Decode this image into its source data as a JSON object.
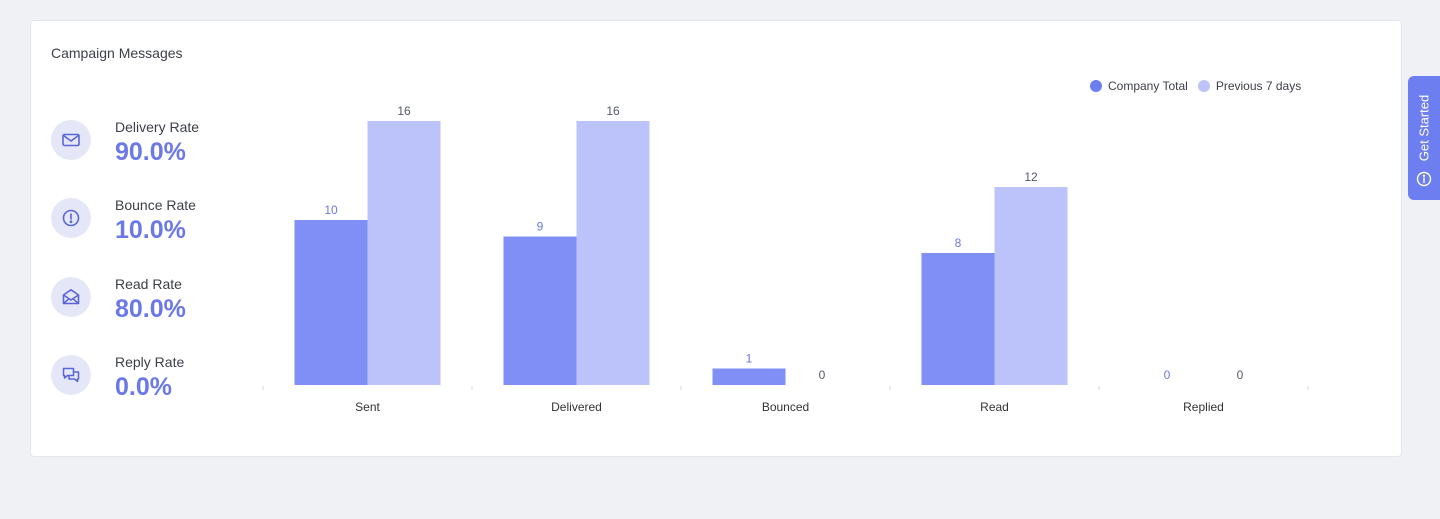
{
  "card": {
    "title": "Campaign Messages"
  },
  "metrics": [
    {
      "label": "Delivery Rate",
      "value": "90.0%",
      "icon": "envelope-icon"
    },
    {
      "label": "Bounce Rate",
      "value": "10.0%",
      "icon": "alert-circle-icon"
    },
    {
      "label": "Read Rate",
      "value": "80.0%",
      "icon": "open-envelope-icon"
    },
    {
      "label": "Reply Rate",
      "value": "0.0%",
      "icon": "chat-bubbles-icon"
    }
  ],
  "sidebar_tab": {
    "label": "Get Started",
    "icon": "info-icon"
  },
  "chart_data": {
    "type": "bar",
    "title": "",
    "xlabel": "",
    "ylabel": "",
    "categories": [
      "Sent",
      "Delivered",
      "Bounced",
      "Read",
      "Replied"
    ],
    "series": [
      {
        "name": "Company Total",
        "values": [
          10,
          9,
          1,
          8,
          0
        ],
        "color": "#7f8ff5"
      },
      {
        "name": "Previous 7 days",
        "values": [
          16,
          16,
          0,
          12,
          0
        ],
        "color": "#bcc3fa"
      }
    ],
    "ylim": [
      0,
      16
    ],
    "grid": false,
    "legend": "top-right"
  },
  "colors": {
    "accent": "#6b78e8",
    "background": "#f0f1f5",
    "icon_bg": "#e5e7f8",
    "tab": "#6d7ef0"
  }
}
